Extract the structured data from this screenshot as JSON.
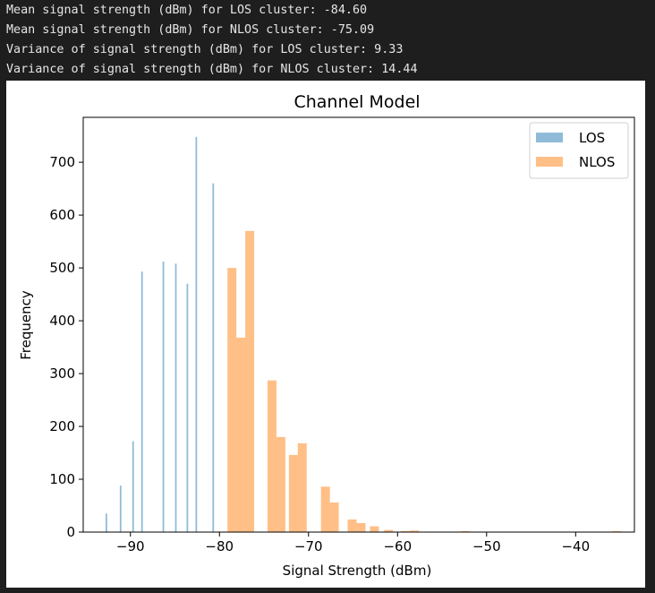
{
  "console": {
    "lines": [
      "Mean signal strength (dBm) for LOS cluster: -84.60",
      "Mean signal strength (dBm) for NLOS cluster: -75.09",
      "Variance of signal strength (dBm) for LOS cluster: 9.33",
      "Variance of signal strength (dBm) for NLOS cluster: 14.44"
    ]
  },
  "chart_data": {
    "type": "bar",
    "title": "Channel Model",
    "xlabel": "Signal Strength (dBm)",
    "ylabel": "Frequency",
    "xlim": [
      -95.3,
      -33.4
    ],
    "ylim": [
      0,
      785
    ],
    "xticks": [
      -90,
      -80,
      -70,
      -60,
      -50,
      -40
    ],
    "xtick_labels": [
      "−90",
      "−80",
      "−70",
      "−60",
      "−50",
      "−40"
    ],
    "yticks": [
      0,
      100,
      200,
      300,
      400,
      500,
      600,
      700
    ],
    "ytick_labels": [
      "0",
      "100",
      "200",
      "300",
      "400",
      "500",
      "600",
      "700"
    ],
    "grid": false,
    "legend_position": "top-right",
    "bin_width": 1.0,
    "series": [
      {
        "name": "LOS",
        "color": "#1f77b4",
        "alpha": 0.5,
        "bar_width": 0.18,
        "bins": [
          {
            "x": -92.7,
            "count": 35
          },
          {
            "x": -91.1,
            "count": 88
          },
          {
            "x": -89.7,
            "count": 172
          },
          {
            "x": -88.7,
            "count": 493
          },
          {
            "x": -86.3,
            "count": 512
          },
          {
            "x": -84.9,
            "count": 508
          },
          {
            "x": -83.6,
            "count": 470
          },
          {
            "x": -82.6,
            "count": 748
          },
          {
            "x": -80.7,
            "count": 660
          }
        ]
      },
      {
        "name": "NLOS",
        "color": "#ff7f0e",
        "alpha": 0.5,
        "bar_width": 1.0,
        "bins": [
          {
            "x": -78.6,
            "count": 500
          },
          {
            "x": -77.6,
            "count": 368
          },
          {
            "x": -76.6,
            "count": 570
          },
          {
            "x": -74.1,
            "count": 287
          },
          {
            "x": -73.1,
            "count": 180
          },
          {
            "x": -71.7,
            "count": 146
          },
          {
            "x": -70.7,
            "count": 168
          },
          {
            "x": -68.1,
            "count": 86
          },
          {
            "x": -67.1,
            "count": 56
          },
          {
            "x": -65.1,
            "count": 24
          },
          {
            "x": -64.1,
            "count": 17
          },
          {
            "x": -62.6,
            "count": 11
          },
          {
            "x": -61.0,
            "count": 4
          },
          {
            "x": -59.1,
            "count": 2
          },
          {
            "x": -58.1,
            "count": 3
          },
          {
            "x": -52.4,
            "count": 2
          },
          {
            "x": -35.4,
            "count": 2
          }
        ]
      }
    ]
  }
}
